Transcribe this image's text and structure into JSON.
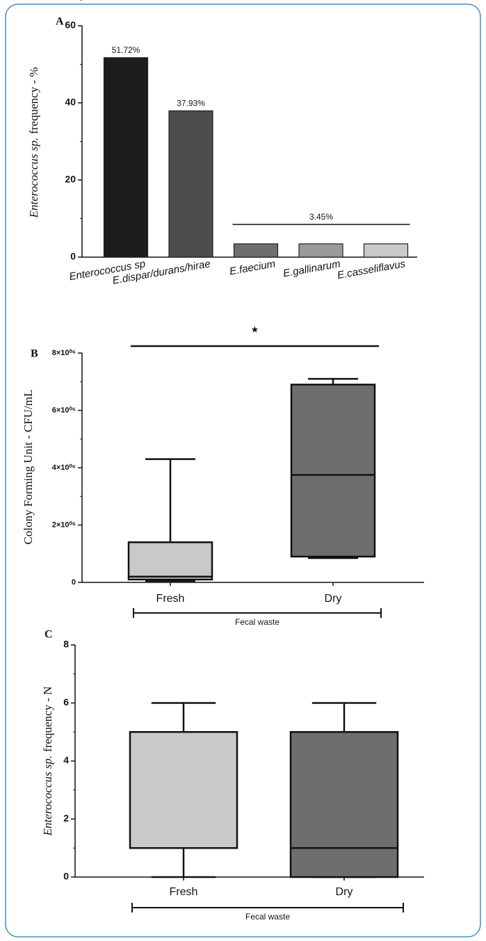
{
  "chart_data": [
    {
      "type": "bar",
      "label": "A",
      "ylabel_italic": "Enterococcus sp.",
      "ylabel": "frequency - %",
      "categories": [
        "Enterococcus sp",
        "E.dispar/durans/hirae",
        "E.faecium",
        "E.gallinarum",
        "E.casseliflavus"
      ],
      "values": [
        51.72,
        37.93,
        3.45,
        3.45,
        3.45
      ],
      "value_labels": [
        "51.72%",
        "37.93%",
        null,
        null,
        null
      ],
      "annotation": "3.45%",
      "colors": [
        "#1c1c1c",
        "#4d4d4d",
        "#6e6e6e",
        "#9a9a9a",
        "#c9c9c9"
      ],
      "ylim": [
        0,
        60
      ],
      "yticks": [
        0,
        20,
        40,
        60
      ]
    },
    {
      "type": "box",
      "label": "B",
      "ylabel": "Colony Forming Unit - CFU/mL",
      "categories": [
        "Fresh",
        "Dry"
      ],
      "boxes": [
        {
          "min": 50000,
          "q1": 100000,
          "median": 200000,
          "q3": 1400000,
          "max": 4300000
        },
        {
          "min": 850000,
          "q1": 900000,
          "median": 3750000,
          "q3": 6900000,
          "max": 7100000
        }
      ],
      "colors": [
        "#c9c9c9",
        "#6e6e6e"
      ],
      "ylim": [
        0,
        8000000
      ],
      "yticks": [
        0,
        {
          "value": 2000000,
          "label": "2×10⁰⁶"
        },
        {
          "value": 4000000,
          "label": "4×10⁰⁶"
        },
        {
          "value": 6000000,
          "label": "6×10⁰⁶"
        },
        {
          "value": 8000000,
          "label": "8×10⁰⁶"
        }
      ],
      "xlabel": "Fecal waste",
      "annotation": "★"
    },
    {
      "type": "box",
      "label": "C",
      "ylabel_italic": "Enterococcus sp.",
      "ylabel": "frequency - N",
      "categories": [
        "Fresh",
        "Dry"
      ],
      "boxes": [
        {
          "min": 0,
          "q1": 1,
          "median": 1,
          "q3": 5,
          "max": 6
        },
        {
          "min": 0,
          "q1": 0,
          "median": 1,
          "q3": 5,
          "max": 6
        }
      ],
      "colors": [
        "#c9c9c9",
        "#6e6e6e"
      ],
      "ylim": [
        0,
        8
      ],
      "yticks": [
        0,
        2,
        4,
        6,
        8
      ],
      "xlabel": "Fecal waste"
    }
  ]
}
